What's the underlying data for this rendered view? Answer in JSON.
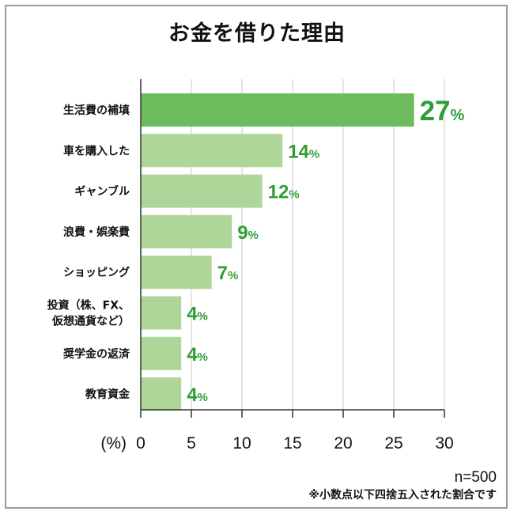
{
  "colors": {
    "bar_highlight": "#6cbb5c",
    "bar_default": "#aed698",
    "value_text": "#2f9e37",
    "gridline": "#c8c8c8",
    "axis": "#333333",
    "frame": "#9a9a9a"
  },
  "chart_data": {
    "type": "bar",
    "orientation": "horizontal",
    "title": "お金を借りた理由",
    "categories": [
      "生活費の補填",
      "車を購入した",
      "ギャンブル",
      "浪費・娯楽費",
      "ショッピング",
      "投資（株、FX、\n仮想通貨など）",
      "奨学金の返済",
      "教育資金"
    ],
    "values": [
      27,
      14,
      12,
      9,
      7,
      4,
      4,
      4
    ],
    "value_suffix": "%",
    "unit_label": "(%)",
    "xlim": [
      0,
      30
    ],
    "xticks": [
      0,
      5,
      10,
      15,
      20,
      25,
      30
    ],
    "grid": true,
    "highlight_index": 0
  },
  "notes": {
    "sample": "n=500",
    "rounding": "※小数点以下四捨五入された割合です"
  }
}
